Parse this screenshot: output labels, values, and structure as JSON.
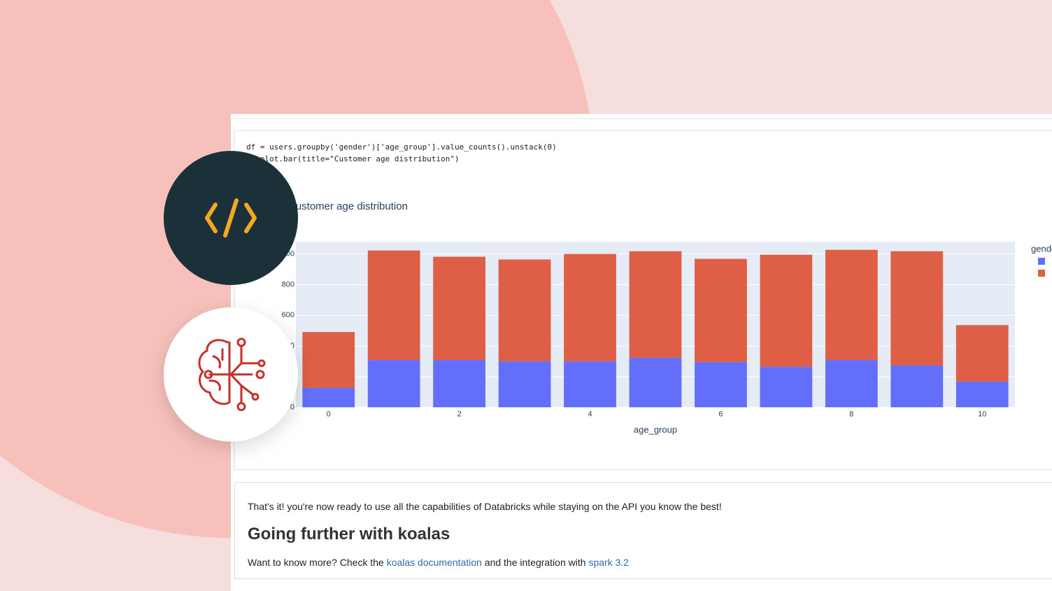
{
  "code": {
    "lines": [
      "df = users.groupby('gender')['age_group'].value_counts().unstack(0)",
      "df.plot.bar(title=\"Customer age distribution\")"
    ]
  },
  "chart_data": {
    "type": "bar",
    "stacked": true,
    "title": "Customer age distribution",
    "x_label": "age_group",
    "legend_title": "gender",
    "x": [
      0,
      1,
      2,
      3,
      4,
      5,
      6,
      7,
      8,
      9,
      10
    ],
    "xlim": [
      -0.5,
      10.5
    ],
    "xticks": [
      0,
      2,
      4,
      6,
      8,
      10
    ],
    "ylim": [
      0,
      1080
    ],
    "yticks": [
      0,
      200,
      400,
      600,
      800,
      1000
    ],
    "grid": true,
    "series": [
      {
        "color": "#636efa",
        "values": [
          127,
          309,
          309,
          300,
          300,
          323,
          295,
          264,
          309,
          273,
          168
        ]
      },
      {
        "color": "#de5f46",
        "values": [
          364,
          714,
          673,
          664,
          700,
          695,
          673,
          731,
          718,
          745,
          368
        ]
      }
    ]
  },
  "text_cell": {
    "paragraph": "That's it! you're now ready to use all the capabilities of Databricks while staying on the API you know the best!",
    "heading": "Going further with koalas",
    "links_line": {
      "parts": [
        {
          "text": "Want to know more? Check the "
        },
        {
          "text": "koalas documentation",
          "link": true
        },
        {
          "text": " and the integration with "
        },
        {
          "text": "spark 3.2",
          "link": true
        }
      ]
    }
  }
}
